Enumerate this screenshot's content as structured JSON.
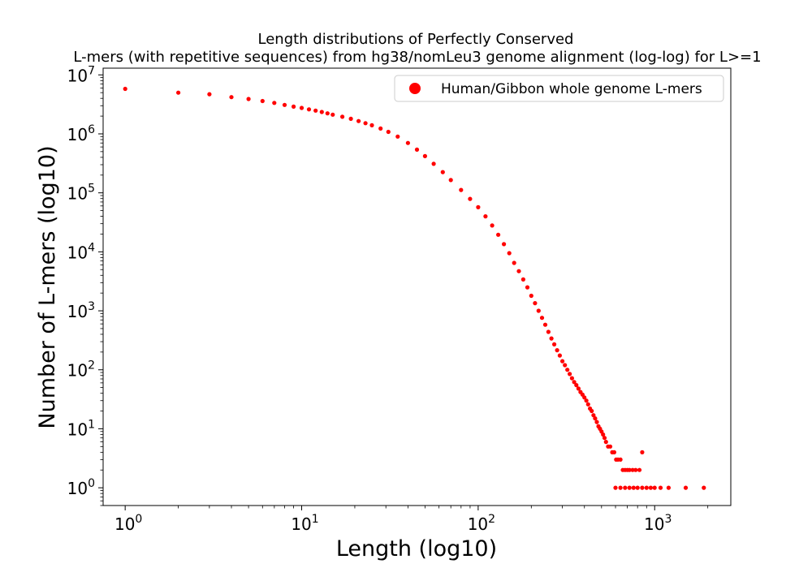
{
  "chart_data": {
    "type": "scatter",
    "title_line1": "Length distributions of Perfectly Conserved",
    "title_line2": "L-mers (with repetitive sequences) from hg38/nomLeu3 genome alignment (log-log) for L>=1",
    "xlabel": "Length (log10)",
    "ylabel": "Number of L-mers (log10)",
    "xscale": "log",
    "yscale": "log",
    "xlim": [
      0.75,
      2700
    ],
    "ylim": [
      0.5,
      13000000
    ],
    "x_ticks": [
      {
        "base": "10",
        "exp": "0",
        "value": 1
      },
      {
        "base": "10",
        "exp": "1",
        "value": 10
      },
      {
        "base": "10",
        "exp": "2",
        "value": 100
      },
      {
        "base": "10",
        "exp": "3",
        "value": 1000
      }
    ],
    "y_ticks": [
      {
        "base": "10",
        "exp": "0",
        "value": 1
      },
      {
        "base": "10",
        "exp": "1",
        "value": 10
      },
      {
        "base": "10",
        "exp": "2",
        "value": 100
      },
      {
        "base": "10",
        "exp": "3",
        "value": 1000
      },
      {
        "base": "10",
        "exp": "4",
        "value": 10000
      },
      {
        "base": "10",
        "exp": "5",
        "value": 100000
      },
      {
        "base": "10",
        "exp": "6",
        "value": 1000000
      },
      {
        "base": "10",
        "exp": "7",
        "value": 10000000
      }
    ],
    "grid": false,
    "legend_position": "top-right",
    "series": [
      {
        "name": "Human/Gibbon whole genome L-mers",
        "color": "#ff0000",
        "marker": "circle",
        "points": [
          [
            1,
            5800000
          ],
          [
            2,
            5000000
          ],
          [
            3,
            4700000
          ],
          [
            4,
            4200000
          ],
          [
            5,
            3900000
          ],
          [
            6,
            3600000
          ],
          [
            7,
            3350000
          ],
          [
            8,
            3100000
          ],
          [
            9,
            2900000
          ],
          [
            10,
            2750000
          ],
          [
            11,
            2600000
          ],
          [
            12,
            2480000
          ],
          [
            13,
            2350000
          ],
          [
            14,
            2230000
          ],
          [
            15,
            2120000
          ],
          [
            17,
            1950000
          ],
          [
            19,
            1800000
          ],
          [
            21,
            1650000
          ],
          [
            23,
            1520000
          ],
          [
            25,
            1400000
          ],
          [
            28,
            1230000
          ],
          [
            31,
            1080000
          ],
          [
            35,
            900000
          ],
          [
            40,
            700000
          ],
          [
            45,
            540000
          ],
          [
            50,
            420000
          ],
          [
            56,
            310000
          ],
          [
            63,
            225000
          ],
          [
            70,
            165000
          ],
          [
            80,
            112000
          ],
          [
            90,
            79000
          ],
          [
            100,
            57000
          ],
          [
            110,
            40000
          ],
          [
            120,
            28000
          ],
          [
            130,
            19500
          ],
          [
            140,
            13500
          ],
          [
            150,
            9500
          ],
          [
            160,
            6500
          ],
          [
            170,
            4700
          ],
          [
            180,
            3400
          ],
          [
            190,
            2500
          ],
          [
            200,
            1800
          ],
          [
            210,
            1350
          ],
          [
            220,
            1000
          ],
          [
            230,
            760
          ],
          [
            240,
            580
          ],
          [
            250,
            440
          ],
          [
            260,
            340
          ],
          [
            270,
            270
          ],
          [
            280,
            215
          ],
          [
            290,
            175
          ],
          [
            300,
            140
          ],
          [
            310,
            120
          ],
          [
            320,
            100
          ],
          [
            330,
            85
          ],
          [
            340,
            72
          ],
          [
            350,
            62
          ],
          [
            360,
            55
          ],
          [
            370,
            48
          ],
          [
            380,
            42
          ],
          [
            390,
            38
          ],
          [
            400,
            34
          ],
          [
            410,
            30
          ],
          [
            420,
            26
          ],
          [
            430,
            22
          ],
          [
            440,
            20
          ],
          [
            450,
            17
          ],
          [
            460,
            15
          ],
          [
            470,
            13
          ],
          [
            480,
            11
          ],
          [
            490,
            10
          ],
          [
            500,
            9
          ],
          [
            510,
            8
          ],
          [
            520,
            7
          ],
          [
            530,
            6
          ],
          [
            545,
            5
          ],
          [
            560,
            5
          ],
          [
            575,
            4
          ],
          [
            590,
            4
          ],
          [
            605,
            3
          ],
          [
            620,
            3
          ],
          [
            640,
            3
          ],
          [
            660,
            2
          ],
          [
            680,
            2
          ],
          [
            700,
            2
          ],
          [
            720,
            2
          ],
          [
            750,
            2
          ],
          [
            780,
            2
          ],
          [
            820,
            2
          ],
          [
            850,
            4
          ],
          [
            600,
            1
          ],
          [
            640,
            1
          ],
          [
            680,
            1
          ],
          [
            720,
            1
          ],
          [
            760,
            1
          ],
          [
            800,
            1
          ],
          [
            850,
            1
          ],
          [
            900,
            1
          ],
          [
            950,
            1
          ],
          [
            1000,
            1
          ],
          [
            1080,
            1
          ],
          [
            1200,
            1
          ],
          [
            1500,
            1
          ],
          [
            1900,
            1
          ]
        ]
      }
    ]
  }
}
